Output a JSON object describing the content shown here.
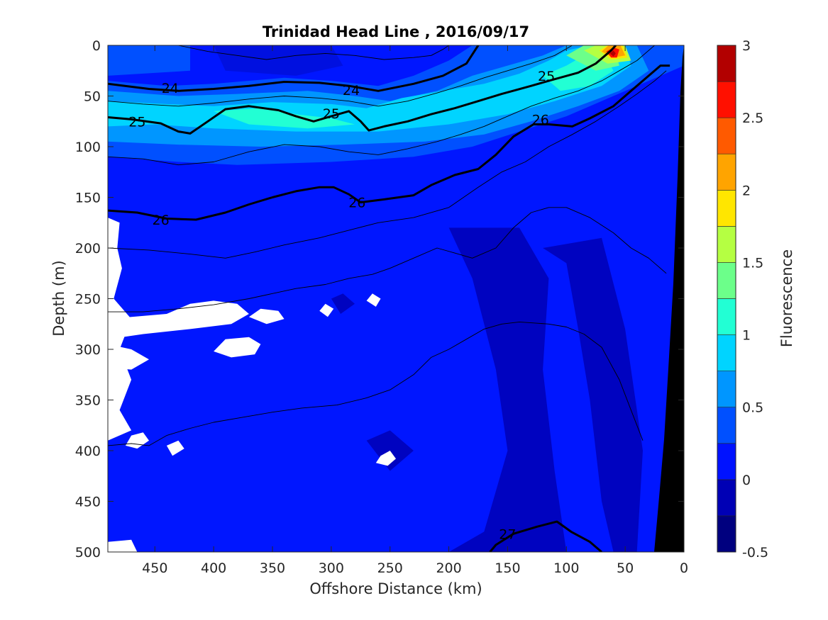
{
  "chart_data": {
    "type": "heatmap",
    "title": "Trinidad Head Line , 2016/09/17",
    "xlabel": "Offshore Distance (km)",
    "ylabel": "Depth (m)",
    "colorbar_label": "Fluorescence",
    "xlim": [
      490,
      0
    ],
    "ylim": [
      500,
      0
    ],
    "x_ticks": [
      450,
      400,
      350,
      300,
      250,
      200,
      150,
      100,
      50,
      0
    ],
    "y_ticks": [
      0,
      50,
      100,
      150,
      200,
      250,
      300,
      350,
      400,
      450,
      500
    ],
    "colorbar_ticks": [
      3,
      2.5,
      2,
      1.5,
      1,
      0.5,
      0,
      -0.5
    ],
    "colorbar_ticks_label": [
      "3",
      "2.5",
      "2",
      "1.5",
      "1",
      "0.5",
      "0",
      "-0.5"
    ],
    "colorbar_levels": [
      -0.5,
      -0.25,
      0,
      0.25,
      0.5,
      0.75,
      1,
      1.25,
      1.5,
      1.75,
      2,
      2.25,
      2.5,
      2.75,
      3
    ],
    "colorbar_colors": [
      "#00007f",
      "#0000b5",
      "#0012ff",
      "#0050ff",
      "#0096ff",
      "#00d4ff",
      "#22ffd4",
      "#6cff8a",
      "#b5ff42",
      "#ffe600",
      "#ffa400",
      "#ff5a00",
      "#ff1000",
      "#b20000"
    ],
    "density_contours": [
      {
        "label": "24",
        "bold": true,
        "points": [
          [
            490,
            38
          ],
          [
            455,
            43
          ],
          [
            430,
            45
          ],
          [
            400,
            43
          ],
          [
            370,
            40
          ],
          [
            340,
            36
          ],
          [
            310,
            37
          ],
          [
            285,
            40
          ],
          [
            260,
            45
          ],
          [
            230,
            38
          ],
          [
            205,
            30
          ],
          [
            185,
            18
          ],
          [
            175,
            0
          ]
        ]
      },
      {
        "label": "25",
        "bold": true,
        "points": [
          [
            490,
            71
          ],
          [
            470,
            73
          ],
          [
            445,
            77
          ],
          [
            430,
            85
          ],
          [
            420,
            87
          ],
          [
            405,
            75
          ],
          [
            390,
            63
          ],
          [
            370,
            60
          ],
          [
            345,
            64
          ],
          [
            330,
            70
          ],
          [
            315,
            75
          ],
          [
            300,
            70
          ],
          [
            285,
            65
          ],
          [
            275,
            75
          ],
          [
            268,
            84
          ],
          [
            255,
            80
          ],
          [
            235,
            75
          ],
          [
            215,
            68
          ],
          [
            195,
            62
          ],
          [
            175,
            55
          ],
          [
            155,
            48
          ],
          [
            130,
            40
          ],
          [
            115,
            35
          ],
          [
            90,
            27
          ],
          [
            75,
            18
          ],
          [
            62,
            5
          ],
          [
            58,
            0
          ]
        ]
      },
      {
        "label": "26",
        "bold": true,
        "points": [
          [
            490,
            163
          ],
          [
            465,
            165
          ],
          [
            440,
            171
          ],
          [
            415,
            172
          ],
          [
            390,
            165
          ],
          [
            370,
            157
          ],
          [
            350,
            150
          ],
          [
            330,
            144
          ],
          [
            310,
            140
          ],
          [
            298,
            140
          ],
          [
            285,
            147
          ],
          [
            275,
            155
          ],
          [
            255,
            152
          ],
          [
            230,
            148
          ],
          [
            215,
            138
          ],
          [
            195,
            128
          ],
          [
            175,
            122
          ],
          [
            160,
            108
          ],
          [
            145,
            90
          ],
          [
            128,
            78
          ],
          [
            115,
            78
          ],
          [
            95,
            80
          ],
          [
            80,
            72
          ],
          [
            60,
            60
          ],
          [
            45,
            45
          ],
          [
            30,
            30
          ],
          [
            20,
            20
          ],
          [
            12,
            20
          ]
        ]
      },
      {
        "label": "27",
        "bold": true,
        "points": [
          [
            165,
            500
          ],
          [
            160,
            493
          ],
          [
            145,
            482
          ],
          [
            125,
            475
          ],
          [
            108,
            470
          ],
          [
            96,
            480
          ],
          [
            80,
            490
          ],
          [
            70,
            500
          ]
        ]
      },
      {
        "label": "",
        "bold": false,
        "points": [
          [
            490,
            200
          ],
          [
            455,
            202
          ],
          [
            420,
            206
          ],
          [
            390,
            210
          ],
          [
            365,
            204
          ],
          [
            340,
            197
          ],
          [
            310,
            190
          ],
          [
            280,
            181
          ],
          [
            260,
            175
          ],
          [
            230,
            170
          ],
          [
            200,
            160
          ],
          [
            175,
            140
          ],
          [
            155,
            125
          ],
          [
            135,
            115
          ],
          [
            115,
            100
          ],
          [
            95,
            88
          ],
          [
            75,
            75
          ],
          [
            55,
            60
          ],
          [
            40,
            48
          ],
          [
            25,
            35
          ],
          [
            15,
            25
          ]
        ]
      },
      {
        "label": "",
        "bold": false,
        "points": [
          [
            490,
            263
          ],
          [
            460,
            263
          ],
          [
            430,
            260
          ],
          [
            400,
            256
          ],
          [
            370,
            250
          ],
          [
            350,
            245
          ],
          [
            330,
            240
          ],
          [
            305,
            236
          ],
          [
            285,
            230
          ],
          [
            265,
            226
          ],
          [
            250,
            220
          ],
          [
            230,
            210
          ],
          [
            210,
            200
          ],
          [
            195,
            205
          ],
          [
            180,
            210
          ],
          [
            160,
            200
          ],
          [
            145,
            180
          ],
          [
            130,
            165
          ],
          [
            115,
            160
          ],
          [
            100,
            160
          ],
          [
            80,
            170
          ],
          [
            60,
            185
          ],
          [
            45,
            200
          ],
          [
            30,
            210
          ],
          [
            15,
            225
          ]
        ]
      },
      {
        "label": "",
        "bold": false,
        "points": [
          [
            490,
            395
          ],
          [
            470,
            393
          ],
          [
            455,
            395
          ],
          [
            440,
            385
          ],
          [
            420,
            378
          ],
          [
            400,
            372
          ],
          [
            375,
            367
          ],
          [
            350,
            362
          ],
          [
            325,
            358
          ],
          [
            295,
            355
          ],
          [
            270,
            348
          ],
          [
            250,
            340
          ],
          [
            230,
            325
          ],
          [
            215,
            308
          ],
          [
            200,
            300
          ],
          [
            185,
            290
          ],
          [
            170,
            280
          ],
          [
            155,
            275
          ],
          [
            140,
            273
          ],
          [
            115,
            275
          ],
          [
            100,
            278
          ],
          [
            85,
            285
          ],
          [
            70,
            298
          ],
          [
            55,
            330
          ],
          [
            45,
            360
          ],
          [
            35,
            390
          ]
        ]
      },
      {
        "label": "",
        "bold": false,
        "points": [
          [
            430,
            0
          ],
          [
            405,
            6
          ],
          [
            380,
            10
          ],
          [
            355,
            14
          ],
          [
            330,
            10
          ],
          [
            305,
            8
          ],
          [
            280,
            10
          ],
          [
            255,
            14
          ],
          [
            230,
            12
          ],
          [
            215,
            10
          ],
          [
            205,
            4
          ],
          [
            200,
            0
          ]
        ]
      },
      {
        "label": "",
        "bold": false,
        "points": [
          [
            490,
            55
          ],
          [
            460,
            58
          ],
          [
            430,
            60
          ],
          [
            400,
            57
          ],
          [
            370,
            53
          ],
          [
            340,
            50
          ],
          [
            310,
            52
          ],
          [
            285,
            55
          ],
          [
            260,
            60
          ],
          [
            235,
            55
          ],
          [
            210,
            47
          ],
          [
            190,
            40
          ],
          [
            170,
            32
          ],
          [
            150,
            25
          ],
          [
            130,
            18
          ],
          [
            110,
            10
          ],
          [
            95,
            0
          ]
        ]
      },
      {
        "label": "",
        "bold": false,
        "points": [
          [
            490,
            110
          ],
          [
            460,
            112
          ],
          [
            430,
            118
          ],
          [
            400,
            115
          ],
          [
            370,
            105
          ],
          [
            340,
            98
          ],
          [
            310,
            100
          ],
          [
            285,
            105
          ],
          [
            260,
            108
          ],
          [
            235,
            102
          ],
          [
            210,
            95
          ],
          [
            190,
            88
          ],
          [
            170,
            80
          ],
          [
            150,
            70
          ],
          [
            130,
            60
          ],
          [
            110,
            52
          ],
          [
            90,
            45
          ],
          [
            70,
            35
          ],
          [
            55,
            25
          ],
          [
            40,
            15
          ],
          [
            25,
            0
          ]
        ]
      }
    ]
  }
}
